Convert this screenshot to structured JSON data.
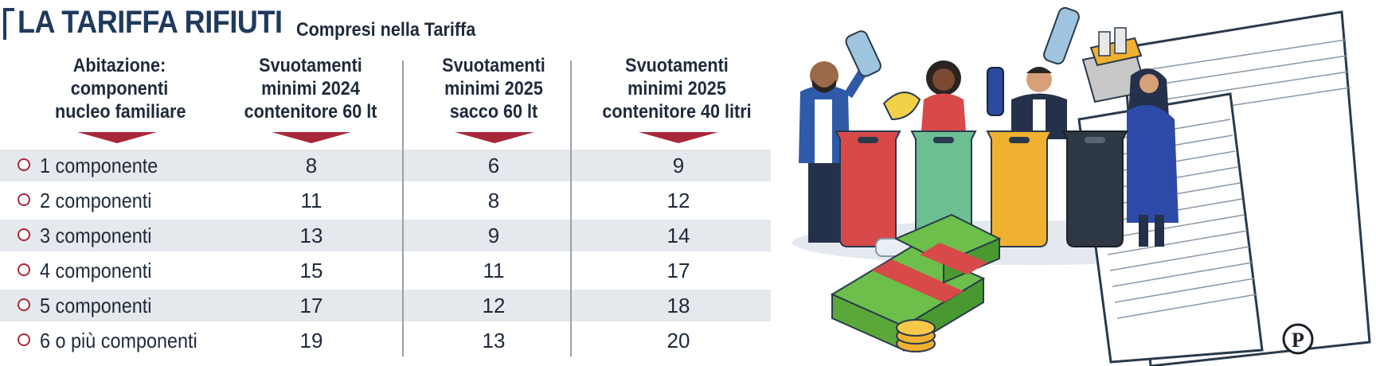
{
  "header": {
    "title": "LA TARIFFA RIFIUTI",
    "subtitle": "Compresi nella Tariffa"
  },
  "columns": [
    {
      "lines": [
        "Abitazione:",
        "componenti",
        "nucleo familiare"
      ]
    },
    {
      "lines": [
        "Svuotamenti",
        "minimi 2024",
        "contenitore 60 lt"
      ]
    },
    {
      "lines": [
        "Svuotamenti",
        "minimi 2025",
        "sacco 60 lt"
      ]
    },
    {
      "lines": [
        "Svuotamenti",
        "minimi 2025",
        "contenitore 40 litri"
      ]
    }
  ],
  "rows": [
    {
      "label": "1 componente",
      "v2024_60": "8",
      "v2025_sacco": "6",
      "v2025_40": "9"
    },
    {
      "label": "2 componenti",
      "v2024_60": "11",
      "v2025_sacco": "8",
      "v2025_40": "12"
    },
    {
      "label": "3 componenti",
      "v2024_60": "13",
      "v2025_sacco": "9",
      "v2025_40": "14"
    },
    {
      "label": "4 componenti",
      "v2024_60": "15",
      "v2025_sacco": "11",
      "v2025_40": "17"
    },
    {
      "label": "5 componenti",
      "v2024_60": "17",
      "v2025_sacco": "12",
      "v2025_40": "18"
    },
    {
      "label": "6 o più componenti",
      "v2024_60": "19",
      "v2025_sacco": "13",
      "v2025_40": "20"
    }
  ],
  "illustration": {
    "bin_colors": [
      "#d84a4a",
      "#6cbf92",
      "#f0b030",
      "#2e3744"
    ],
    "logo_letter": "P"
  },
  "colors": {
    "accent": "#a8283a",
    "title": "#1f3a5c",
    "row_shade": "#e5e8ec"
  }
}
